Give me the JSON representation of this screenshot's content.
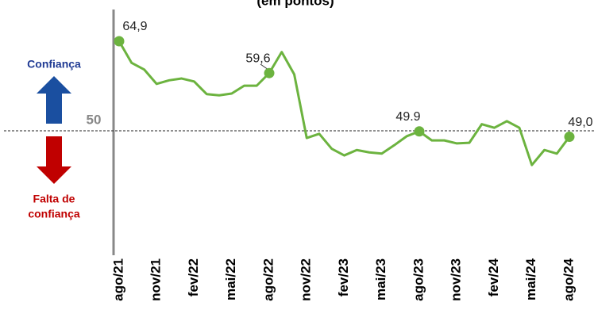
{
  "chart_data": {
    "type": "line",
    "title": "(em pontos)",
    "categories": [
      "ago/21",
      null,
      null,
      "nov/21",
      null,
      null,
      "fev/22",
      null,
      null,
      "mai/22",
      null,
      null,
      "ago/22",
      null,
      null,
      "nov/22",
      null,
      null,
      "fev/23",
      null,
      null,
      "mai/23",
      null,
      null,
      "ago/23",
      null,
      null,
      "nov/23",
      null,
      null,
      "fev/24",
      null,
      null,
      "mai/24",
      null,
      null,
      "ago/24"
    ],
    "series": [
      {
        "name": "Confiança",
        "color": "#6cb33f",
        "values": [
          64.9,
          61.3,
          60.2,
          57.8,
          58.4,
          58.7,
          58.2,
          56.1,
          55.9,
          56.2,
          57.5,
          57.5,
          59.6,
          63.1,
          59.4,
          48.8,
          49.5,
          47.0,
          45.9,
          46.8,
          46.4,
          46.2,
          47.6,
          49.1,
          49.9,
          48.4,
          48.4,
          47.9,
          48.0,
          51.1,
          50.5,
          51.6,
          50.5,
          44.3,
          46.8,
          46.2,
          49.0
        ],
        "value_labels": [
          "64,9",
          null,
          null,
          null,
          null,
          null,
          null,
          null,
          null,
          null,
          null,
          null,
          "59,6",
          null,
          null,
          null,
          null,
          null,
          null,
          null,
          null,
          null,
          null,
          null,
          "49.9",
          null,
          null,
          null,
          null,
          null,
          null,
          null,
          null,
          null,
          null,
          null,
          "49,0"
        ]
      }
    ],
    "ylim": [
      30,
      72
    ],
    "reference": {
      "value": 50,
      "label": "50"
    },
    "upper_label": "Confiança",
    "lower_label": [
      "Falta de",
      "confiança"
    ]
  }
}
